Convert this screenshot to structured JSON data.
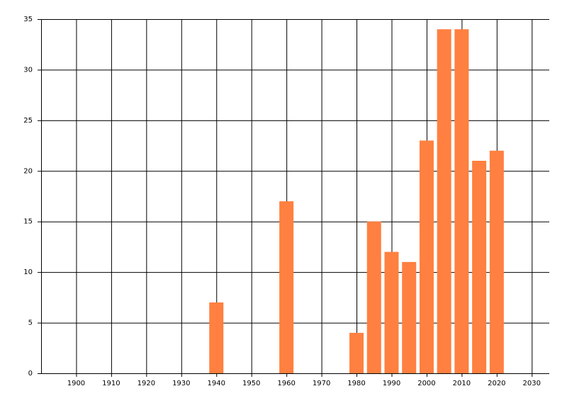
{
  "chart_data": {
    "type": "bar",
    "x": [
      1940,
      1960,
      1980,
      1985,
      1990,
      1995,
      2000,
      2005,
      2010,
      2015,
      2020
    ],
    "values": [
      7,
      17,
      4,
      15,
      12,
      11,
      23,
      34,
      34,
      21,
      22
    ],
    "color": "#ff8040",
    "xlim": [
      1890,
      2035
    ],
    "xticks": [
      1900,
      1910,
      1920,
      1930,
      1940,
      1950,
      1960,
      1970,
      1980,
      1990,
      2000,
      2010,
      2020,
      2030
    ],
    "ylim": [
      0,
      35
    ],
    "yticks": [
      0,
      5,
      10,
      15,
      20,
      25,
      30,
      35
    ],
    "grid": true
  }
}
